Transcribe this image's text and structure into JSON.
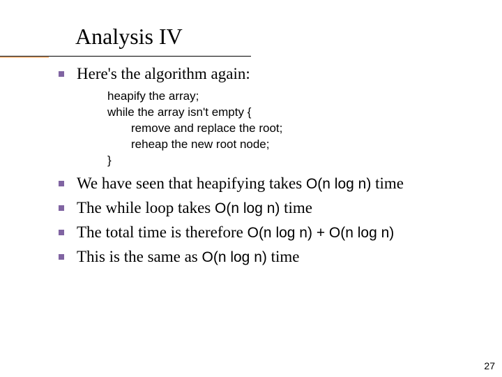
{
  "title": "Analysis IV",
  "bullet1": "Here's the algorithm again:",
  "code": {
    "l1": "heapify the array;",
    "l2": "while the array isn't empty {",
    "l3": "remove and replace the root;",
    "l4": "reheap the new root node;",
    "l5": "}"
  },
  "bullet2_a": "We have seen that heapifying takes ",
  "bullet2_b": "O(n log n)",
  "bullet2_c": " time",
  "bullet3_a": "The while loop takes ",
  "bullet3_b": "O(n log n)",
  "bullet3_c": " time",
  "bullet4_a": "The total time is therefore ",
  "bullet4_b": "O(n log n) + O(n log n)",
  "bullet5_a": "This is the same as ",
  "bullet5_b": "O(n log n)",
  "bullet5_c": " time",
  "page_number": "27",
  "colors": {
    "bullet": "#8064a2",
    "underline_accent": "#fabf8f",
    "text": "#000000",
    "background": "#ffffff"
  }
}
